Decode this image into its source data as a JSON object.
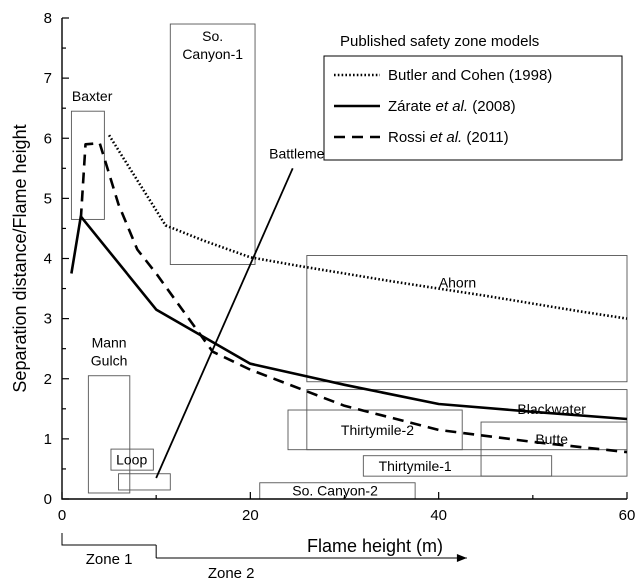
{
  "chart_data": {
    "type": "line",
    "title": "",
    "xlabel": "Flame height (m)",
    "ylabel": "Separation distance/Flame height",
    "xlim": [
      0,
      60
    ],
    "ylim": [
      0,
      8
    ],
    "xticks": [
      0,
      20,
      40,
      60
    ],
    "yticks": [
      0,
      1,
      2,
      3,
      4,
      5,
      6,
      7,
      8
    ],
    "legend": {
      "title": "Published safety zone models",
      "placement": "top-right",
      "entries": [
        {
          "key": "butler",
          "parts": [
            {
              "t": "Butler and Cohen (1998)",
              "i": false
            }
          ]
        },
        {
          "key": "zarate",
          "parts": [
            {
              "t": "Zárate ",
              "i": false
            },
            {
              "t": "et al.",
              "i": true
            },
            {
              "t": " (2008)",
              "i": false
            }
          ]
        },
        {
          "key": "rossi",
          "parts": [
            {
              "t": "Rossi ",
              "i": false
            },
            {
              "t": "et al.",
              "i": true
            },
            {
              "t": " (2011)",
              "i": false
            }
          ]
        }
      ]
    },
    "series": [
      {
        "key": "butler",
        "style": "dotted",
        "points": [
          [
            5,
            6.05
          ],
          [
            6,
            5.8
          ],
          [
            7,
            5.55
          ],
          [
            8,
            5.3
          ],
          [
            9,
            5.05
          ],
          [
            10,
            4.8
          ],
          [
            11,
            4.55
          ],
          [
            15,
            4.3
          ],
          [
            20,
            4.02
          ],
          [
            25,
            3.88
          ],
          [
            30,
            3.75
          ],
          [
            35,
            3.62
          ],
          [
            40,
            3.5
          ],
          [
            45,
            3.38
          ],
          [
            50,
            3.25
          ],
          [
            55,
            3.12
          ],
          [
            60,
            3.0
          ]
        ]
      },
      {
        "key": "zarate",
        "style": "solid",
        "points": [
          [
            1,
            3.75
          ],
          [
            2,
            4.7
          ],
          [
            10,
            3.15
          ],
          [
            20,
            2.25
          ],
          [
            30,
            1.9
          ],
          [
            40,
            1.58
          ],
          [
            50,
            1.45
          ],
          [
            60,
            1.33
          ]
        ]
      },
      {
        "key": "rossi",
        "style": "dashed",
        "points": [
          [
            2,
            4.65
          ],
          [
            2.5,
            5.9
          ],
          [
            4,
            5.92
          ],
          [
            6,
            4.9
          ],
          [
            8,
            4.15
          ],
          [
            10,
            3.75
          ],
          [
            13,
            3.1
          ],
          [
            16,
            2.45
          ],
          [
            20,
            2.15
          ],
          [
            30,
            1.55
          ],
          [
            40,
            1.15
          ],
          [
            50,
            0.95
          ],
          [
            60,
            0.78
          ]
        ]
      }
    ],
    "annotations": [
      {
        "label": "Battlement Ck",
        "line": [
          [
            10,
            0.35
          ],
          [
            24.5,
            5.5
          ]
        ],
        "label_at": [
          22,
          5.75
        ]
      }
    ],
    "regions": [
      {
        "label": [
          "Baxter"
        ],
        "x": [
          1,
          4.5
        ],
        "y": [
          4.65,
          6.45
        ],
        "label_at": [
          3.2,
          6.7
        ]
      },
      {
        "label": [
          "So.",
          "Canyon-1"
        ],
        "x": [
          11.5,
          20.5
        ],
        "y": [
          3.9,
          7.9
        ],
        "label_at": [
          16,
          7.55
        ]
      },
      {
        "label": [
          "Ahorn"
        ],
        "x": [
          26,
          60
        ],
        "y": [
          1.95,
          4.05
        ],
        "label_at": [
          42,
          3.6
        ]
      },
      {
        "label": [
          "Mann",
          "Gulch"
        ],
        "x": [
          2.8,
          7.2
        ],
        "y": [
          0.1,
          2.05
        ],
        "label_at": [
          5,
          2.45
        ]
      },
      {
        "label": [
          "Loop"
        ],
        "x": [
          5.2,
          9.7
        ],
        "y": [
          0.48,
          0.83
        ],
        "label_at": [
          7.4,
          0.66
        ]
      },
      {
        "label": [],
        "x": [
          6,
          11.5
        ],
        "y": [
          0.15,
          0.42
        ],
        "label_at": null
      },
      {
        "label": [
          "So. Canyon-2"
        ],
        "x": [
          21,
          37.5
        ],
        "y": [
          0.0,
          0.27
        ],
        "label_at": [
          29,
          0.14
        ]
      },
      {
        "label": [
          "Thirtymile-2"
        ],
        "x": [
          24,
          42.5
        ],
        "y": [
          0.82,
          1.48
        ],
        "label_at": [
          33.5,
          1.15
        ]
      },
      {
        "label": [
          "Thirtymile-1"
        ],
        "x": [
          32,
          52
        ],
        "y": [
          0.38,
          0.72
        ],
        "label_at": [
          37.5,
          0.55
        ]
      },
      {
        "label": [
          "Blackwater"
        ],
        "x": [
          26,
          60
        ],
        "y": [
          0.82,
          1.82
        ],
        "label_at": [
          52,
          1.5
        ]
      },
      {
        "label": [
          "Butte"
        ],
        "x": [
          44.5,
          60
        ],
        "y": [
          0.38,
          1.28
        ],
        "label_at": [
          52,
          1.0
        ]
      }
    ],
    "zones": [
      {
        "label": "Zone 1",
        "x": [
          0,
          10
        ]
      },
      {
        "label": "Zone 2",
        "x": [
          10,
          43
        ],
        "arrow": true
      }
    ]
  }
}
